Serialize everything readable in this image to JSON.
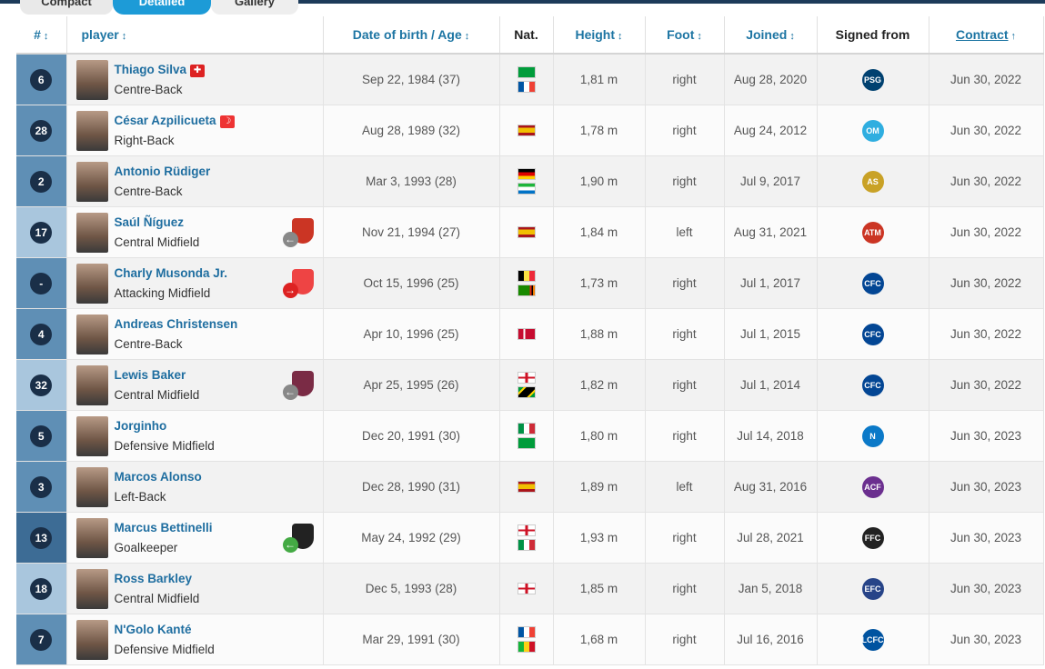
{
  "tabs": [
    {
      "label": "Compact",
      "active": false
    },
    {
      "label": "Detailed",
      "active": true
    },
    {
      "label": "Gallery",
      "active": false
    }
  ],
  "columns": {
    "number": "#",
    "player": "player",
    "dob": "Date of birth / Age",
    "nat": "Nat.",
    "height": "Height",
    "foot": "Foot",
    "joined": "Joined",
    "signed_from": "Signed from",
    "contract": "Contract"
  },
  "sort_icons": {
    "both": "↕",
    "up": "↑"
  },
  "rows": [
    {
      "number": "6",
      "name": "Thiago Silva",
      "position": "Centre-Back",
      "dob": "Sep 22, 1984 (37)",
      "nats": [
        "brazil",
        "france"
      ],
      "height": "1,81 m",
      "foot": "right",
      "joined": "Aug 28, 2020",
      "club_icon": "psg-crest-icon",
      "contract": "Jun 30, 2022",
      "captain": true,
      "transfer": null
    },
    {
      "number": "28",
      "name": "César Azpilicueta",
      "position": "Right-Back",
      "dob": "Aug 28, 1989 (32)",
      "nats": [
        "spain"
      ],
      "height": "1,78 m",
      "foot": "right",
      "joined": "Aug 24, 2012",
      "club_icon": "marseille-crest-icon",
      "contract": "Jun 30, 2022",
      "captain": false,
      "vice_captain": true,
      "transfer": null
    },
    {
      "number": "2",
      "name": "Antonio Rüdiger",
      "position": "Centre-Back",
      "dob": "Mar 3, 1993 (28)",
      "nats": [
        "germany",
        "sierra-leone"
      ],
      "height": "1,90 m",
      "foot": "right",
      "joined": "Jul 9, 2017",
      "club_icon": "roma-crest-icon",
      "contract": "Jun 30, 2022",
      "transfer": null
    },
    {
      "number": "17",
      "name": "Saúl Ñíguez",
      "position": "Central Midfield",
      "dob": "Nov 21, 1994 (27)",
      "nats": [
        "spain"
      ],
      "height": "1,84 m",
      "foot": "left",
      "joined": "Aug 31, 2021",
      "club_icon": "atletico-crest-icon",
      "contract": "Jun 30, 2022",
      "transfer": "loan-grey"
    },
    {
      "number": "-",
      "name": "Charly Musonda Jr.",
      "position": "Attacking Midfield",
      "dob": "Oct 15, 1996 (25)",
      "nats": [
        "belgium",
        "zambia"
      ],
      "height": "1,73 m",
      "foot": "right",
      "joined": "Jul 1, 2017",
      "club_icon": "chelsea-crest-icon",
      "contract": "Jun 30, 2022",
      "transfer": "out-red"
    },
    {
      "number": "4",
      "name": "Andreas Christensen",
      "position": "Centre-Back",
      "dob": "Apr 10, 1996 (25)",
      "nats": [
        "denmark"
      ],
      "height": "1,88 m",
      "foot": "right",
      "joined": "Jul 1, 2015",
      "club_icon": "chelsea-crest-icon",
      "contract": "Jun 30, 2022",
      "transfer": null
    },
    {
      "number": "32",
      "name": "Lewis Baker",
      "position": "Central Midfield",
      "dob": "Apr 25, 1995 (26)",
      "nats": [
        "england",
        "jamaica"
      ],
      "height": "1,82 m",
      "foot": "right",
      "joined": "Jul 1, 2014",
      "club_icon": "chelsea-crest-icon",
      "contract": "Jun 30, 2022",
      "transfer": "loan-grey-trabzon"
    },
    {
      "number": "5",
      "name": "Jorginho",
      "position": "Defensive Midfield",
      "dob": "Dec 20, 1991 (30)",
      "nats": [
        "italy",
        "brazil"
      ],
      "height": "1,80 m",
      "foot": "right",
      "joined": "Jul 14, 2018",
      "club_icon": "napoli-crest-icon",
      "contract": "Jun 30, 2023",
      "transfer": null
    },
    {
      "number": "3",
      "name": "Marcos Alonso",
      "position": "Left-Back",
      "dob": "Dec 28, 1990 (31)",
      "nats": [
        "spain"
      ],
      "height": "1,89 m",
      "foot": "left",
      "joined": "Aug 31, 2016",
      "club_icon": "fiorentina-crest-icon",
      "contract": "Jun 30, 2023",
      "transfer": null
    },
    {
      "number": "13",
      "name": "Marcus Bettinelli",
      "position": "Goalkeeper",
      "dob": "May 24, 1992 (29)",
      "nats": [
        "england",
        "italy"
      ],
      "height": "1,93 m",
      "foot": "right",
      "joined": "Jul 28, 2021",
      "club_icon": "fulham-crest-icon",
      "contract": "Jun 30, 2023",
      "transfer": "in-green"
    },
    {
      "number": "18",
      "name": "Ross Barkley",
      "position": "Central Midfield",
      "dob": "Dec 5, 1993 (28)",
      "nats": [
        "england"
      ],
      "height": "1,85 m",
      "foot": "right",
      "joined": "Jan 5, 2018",
      "club_icon": "everton-crest-icon",
      "contract": "Jun 30, 2023",
      "transfer": null
    },
    {
      "number": "7",
      "name": "N'Golo Kanté",
      "position": "Defensive Midfield",
      "dob": "Mar 29, 1991 (30)",
      "nats": [
        "france",
        "mali"
      ],
      "height": "1,68 m",
      "foot": "right",
      "joined": "Jul 16, 2016",
      "club_icon": "leicester-crest-icon",
      "contract": "Jun 30, 2023",
      "transfer": null
    }
  ],
  "colors": {
    "link_blue": "#1f6ea0",
    "header_blue": "#1d75a3",
    "number_cell": "#5f8fb5",
    "number_circle": "#1a2f48",
    "active_tab": "#1d9bd7"
  }
}
